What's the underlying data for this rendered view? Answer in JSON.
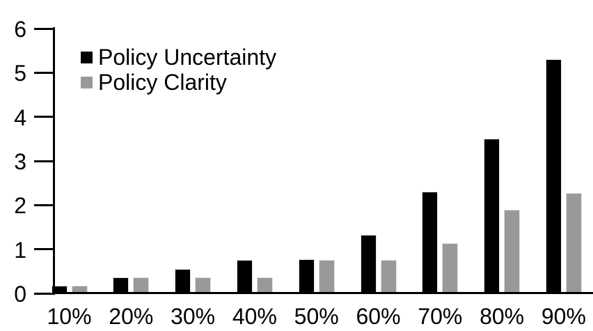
{
  "chart_data": {
    "type": "bar",
    "title": "",
    "categories": [
      "10%",
      "20%",
      "30%",
      "40%",
      "50%",
      "60%",
      "70%",
      "80%",
      "90%"
    ],
    "series": [
      {
        "name": "Policy Uncertainty",
        "color": "#000000",
        "values": [
          0.18,
          0.37,
          0.56,
          0.76,
          0.77,
          1.32,
          2.3,
          3.5,
          5.3
        ]
      },
      {
        "name": "Policy Clarity",
        "color": "#999999",
        "values": [
          0.18,
          0.37,
          0.37,
          0.37,
          0.76,
          0.76,
          1.13,
          1.9,
          2.28
        ]
      }
    ],
    "xlabel": "",
    "ylabel": "",
    "ylim": [
      0,
      6
    ],
    "yticks": [
      0,
      1,
      2,
      3,
      4,
      5,
      6
    ],
    "ytick_labels": [
      "0",
      "1",
      "2",
      "3",
      "4",
      "5",
      "6"
    ],
    "grid": false,
    "legend_position": "top-left-inside",
    "axis_color": "#000000",
    "background": "#ffffff"
  }
}
